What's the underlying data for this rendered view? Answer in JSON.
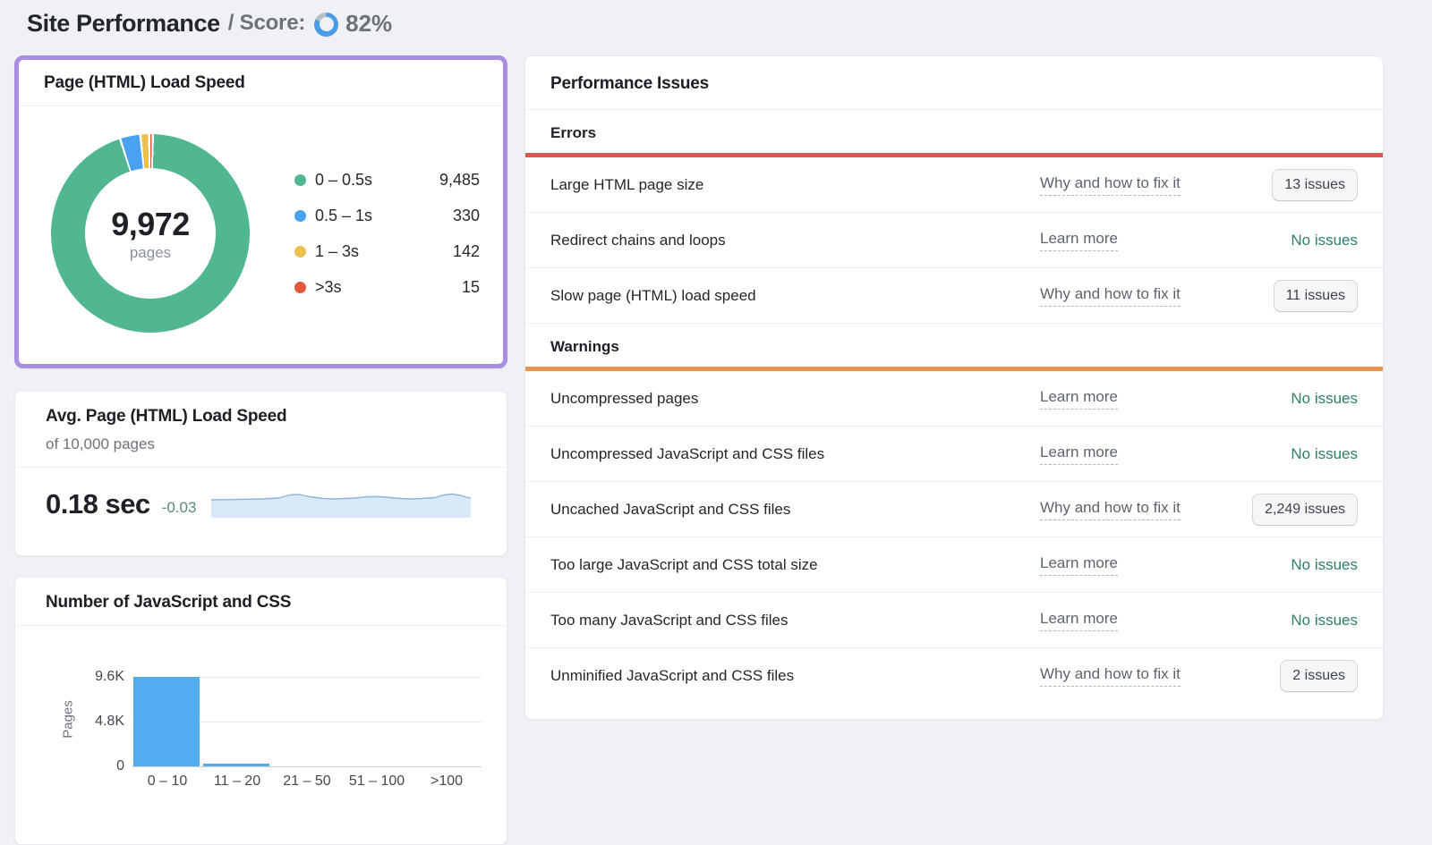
{
  "page": {
    "title": "Site Performance",
    "score_label": "/ Score:",
    "score_value": "82%",
    "score_percent": 82,
    "score_colors": {
      "fill": "#4a9ce6",
      "rest": "#b9bfc6"
    }
  },
  "load_speed_card": {
    "title": "Page (HTML) Load Speed",
    "center_value": "9,972",
    "center_label": "pages",
    "legend": [
      {
        "label": "0 – 0.5s",
        "value": "9,485"
      },
      {
        "label": "0.5 – 1s",
        "value": "330"
      },
      {
        "label": "1 – 3s",
        "value": "142"
      },
      {
        "label": ">3s",
        "value": "15"
      }
    ]
  },
  "avg_card": {
    "title": "Avg. Page (HTML) Load Speed",
    "subtitle": "of 10,000 pages",
    "value": "0.18 sec",
    "delta": "-0.03"
  },
  "jscss_card": {
    "title": "Number of JavaScript and CSS",
    "ylabel": "Pages",
    "yticks": [
      "9.6K",
      "4.8K",
      "0"
    ],
    "categories": [
      "0 – 10",
      "11 – 20",
      "21 – 50",
      "51 – 100",
      ">100"
    ]
  },
  "performance_issues": {
    "title": "Performance Issues",
    "sections": [
      {
        "label": "Errors",
        "bar_color": "#dc5450",
        "rows": [
          {
            "name": "Large HTML page size",
            "link": "Why and how to fix it",
            "status": "13 issues",
            "status_type": "button"
          },
          {
            "name": "Redirect chains and loops",
            "link": "Learn more",
            "status": "No issues",
            "status_type": "text"
          },
          {
            "name": "Slow page (HTML) load speed",
            "link": "Why and how to fix it",
            "status": "11 issues",
            "status_type": "button"
          }
        ]
      },
      {
        "label": "Warnings",
        "bar_color": "#e6954c",
        "rows": [
          {
            "name": "Uncompressed pages",
            "link": "Learn more",
            "status": "No issues",
            "status_type": "text"
          },
          {
            "name": "Uncompressed JavaScript and CSS files",
            "link": "Learn more",
            "status": "No issues",
            "status_type": "text"
          },
          {
            "name": "Uncached JavaScript and CSS files",
            "link": "Why and how to fix it",
            "status": "2,249 issues",
            "status_type": "button"
          },
          {
            "name": "Too large JavaScript and CSS total size",
            "link": "Learn more",
            "status": "No issues",
            "status_type": "text"
          },
          {
            "name": "Too many JavaScript and CSS files",
            "link": "Learn more",
            "status": "No issues",
            "status_type": "text"
          },
          {
            "name": "Unminified JavaScript and CSS files",
            "link": "Why and how to fix it",
            "status": "2 issues",
            "status_type": "button"
          }
        ]
      }
    ]
  },
  "chart_data": [
    {
      "type": "pie",
      "subtype": "donut",
      "title": "Page (HTML) Load Speed",
      "categories": [
        "0 – 0.5s",
        "0.5 – 1s",
        "1 – 3s",
        ">3s"
      ],
      "values": [
        9485,
        330,
        142,
        15
      ],
      "colors": [
        "#50b790",
        "#4aa1f1",
        "#ecc04c",
        "#e4593c"
      ],
      "center_value": 9972,
      "center_label": "pages",
      "legend_position": "right"
    },
    {
      "type": "area",
      "title": "Avg. Page (HTML) Load Speed",
      "current_value_sec": 0.18,
      "change": -0.03,
      "of_pages": 10000,
      "note": "sparkline trend, roughly flat around 0.18–0.21s with small bumps",
      "fill_color": "#d9e9f8",
      "line_color": "#8db5d8"
    },
    {
      "type": "bar",
      "title": "Number of JavaScript and CSS",
      "categories": [
        "0 – 10",
        "11 – 20",
        "21 – 50",
        "51 – 100",
        ">100"
      ],
      "values": [
        9600,
        300,
        0,
        0,
        0
      ],
      "values_note": "first bar reaches 9.6K gridline; second bar tiny (estimate); others zero",
      "xlabel": "",
      "ylabel": "Pages",
      "ylim": [
        0,
        9600
      ],
      "yticks": [
        0,
        4800,
        9600
      ],
      "bar_color": "#52acf0",
      "grid": true
    }
  ]
}
